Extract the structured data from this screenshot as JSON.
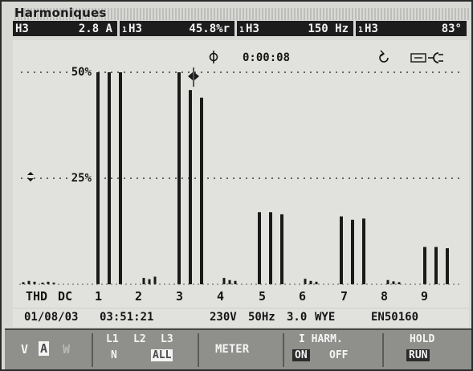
{
  "title": "Harmoniques",
  "readings": [
    {
      "prefix": "",
      "label": "H3",
      "value": "2.8 A"
    },
    {
      "prefix": "1",
      "label": "H3",
      "value": "45.8%r"
    },
    {
      "prefix": "1",
      "label": "H3",
      "value": "150 Hz"
    },
    {
      "prefix": "1",
      "label": "H3",
      "value": "83°"
    }
  ],
  "timer": {
    "icon": "timer-icon",
    "value": "0:00:08"
  },
  "status_icons": [
    "rotation-icon",
    "battery-icon",
    "mains-plug-icon"
  ],
  "chart_data": {
    "type": "bar",
    "ylabel": "",
    "xlabel": "",
    "ylim": [
      0,
      50
    ],
    "gridlines": [
      "50%",
      "25%"
    ],
    "gridline_values": [
      50,
      25
    ],
    "categories": [
      "THD",
      "DC",
      "1",
      "2",
      "3",
      "4",
      "5",
      "6",
      "7",
      "8",
      "9"
    ],
    "cursor_at": "3",
    "groups": [
      {
        "category": "THD",
        "values": [
          0.5,
          0.8,
          0.6
        ]
      },
      {
        "category": "DC",
        "values": [
          0.4,
          0.6,
          0.4
        ]
      },
      {
        "category": "1",
        "values": [
          50,
          50,
          50
        ]
      },
      {
        "category": "2",
        "values": [
          1.5,
          1.2,
          1.8
        ]
      },
      {
        "category": "3",
        "values": [
          50,
          45.8,
          44
        ]
      },
      {
        "category": "4",
        "values": [
          1.5,
          1.0,
          0.8
        ]
      },
      {
        "category": "5",
        "values": [
          17,
          17,
          16.5
        ]
      },
      {
        "category": "6",
        "values": [
          1.3,
          0.8,
          0.6
        ]
      },
      {
        "category": "7",
        "values": [
          16,
          15.2,
          15.5
        ]
      },
      {
        "category": "8",
        "values": [
          1.0,
          0.7,
          0.5
        ]
      },
      {
        "category": "9",
        "values": [
          8.8,
          8.8,
          8.5
        ]
      }
    ]
  },
  "status": {
    "date": "01/08/03",
    "time": "03:51:21",
    "voltage": "230V",
    "frequency": "50Hz",
    "phase": "3.0",
    "config": "WYE",
    "standard": "EN50160"
  },
  "softkeys": {
    "mode": {
      "v": "V",
      "a": "A",
      "w": "W"
    },
    "phases": {
      "l1": "L1",
      "l2": "L2",
      "l3": "L3",
      "n": "N",
      "all": "ALL"
    },
    "meter": "METER",
    "iharm": {
      "title": "I HARM.",
      "on": "ON",
      "off": "OFF"
    },
    "hold": "HOLD",
    "run": "RUN"
  }
}
